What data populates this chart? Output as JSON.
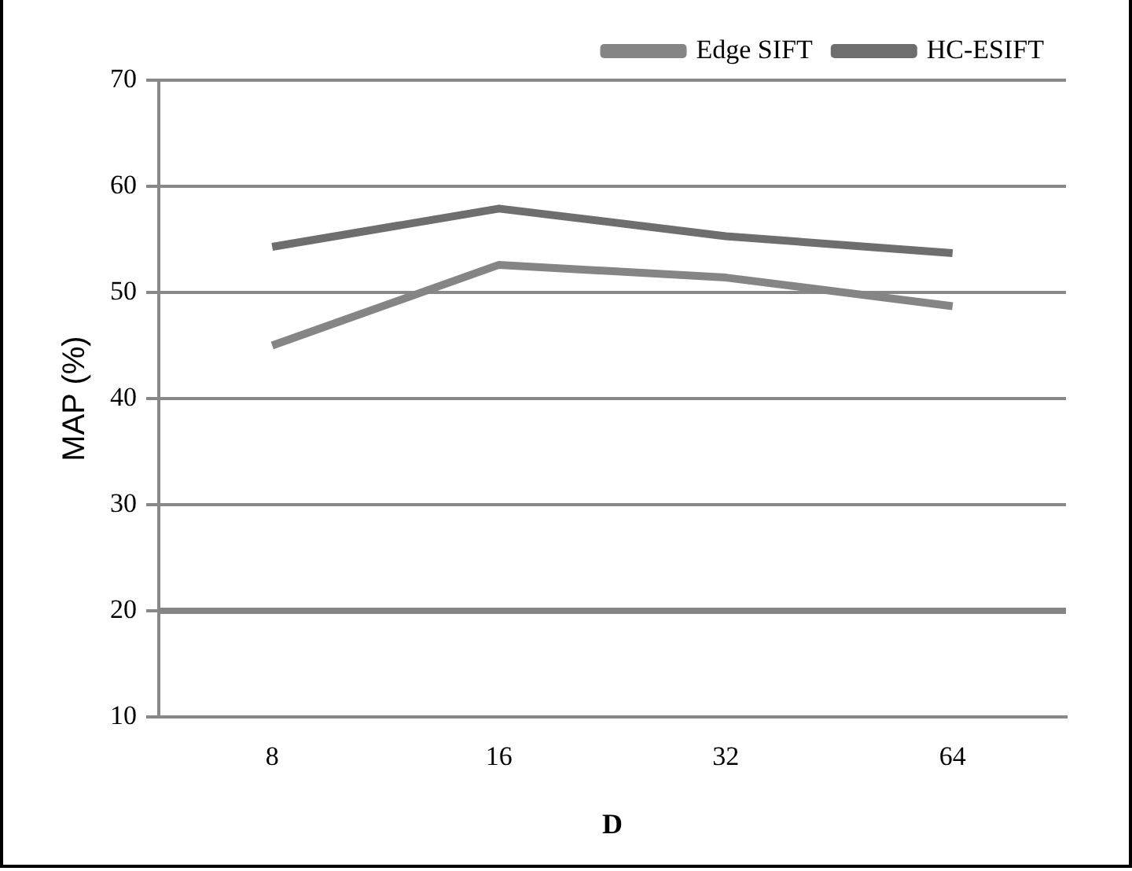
{
  "chart_data": {
    "type": "line",
    "xlabel": "D",
    "ylabel": "MAP (%)",
    "categories": [
      "8",
      "16",
      "32",
      "64"
    ],
    "series": [
      {
        "name": "Edge SIFT",
        "color": "#858585",
        "values": [
          45,
          52.6,
          51.4,
          48.7
        ]
      },
      {
        "name": "HC-ESIFT",
        "color": "#6e6e6e",
        "values": [
          54.3,
          57.9,
          55.3,
          53.7
        ]
      }
    ],
    "ylim": [
      10,
      70
    ],
    "yticks": [
      10,
      20,
      30,
      40,
      50,
      60,
      70
    ],
    "grid": "y",
    "legend": "top",
    "marker": "none",
    "line_style": "solid",
    "ref_lines": [
      {
        "axis": "y",
        "value": 20,
        "color": "#858585"
      }
    ]
  }
}
